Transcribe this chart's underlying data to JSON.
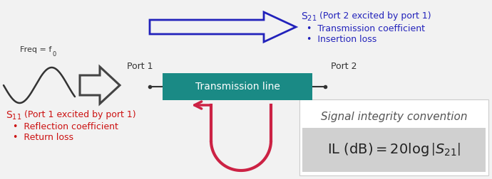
{
  "bg_color": "#f2f2f2",
  "sine_color": "#333333",
  "freq_label": "Freq = f",
  "freq_sub": "0",
  "port1_label": "Port 1",
  "port2_label": "Port 2",
  "tline_label": "Transmission line",
  "tline_bg": "#1a8a85",
  "tline_text_color": "#ffffff",
  "hollow_arrow_color": "#444444",
  "big_arrow_color": "#2222bb",
  "s21_text": "S",
  "s21_sub": "21",
  "s21_title": "(Port 2 excited by port 1)",
  "s21_bullets": [
    "Transmission coefficient",
    "Insertion loss"
  ],
  "s21_color": "#2222bb",
  "s11_text": "S",
  "s11_sub": "11",
  "s11_title": "(Port 1 excited by port 1)",
  "s11_bullets": [
    "Reflection coefficient",
    "Return loss"
  ],
  "s11_color": "#cc1111",
  "back_arrow_color": "#cc2244",
  "sig_int_title": "Signal integrity convention",
  "sig_int_title_color": "#555555",
  "formula_color": "#222222",
  "formula_box_color": "#d0d0d0"
}
